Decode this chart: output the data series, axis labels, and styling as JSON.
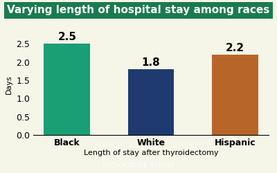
{
  "title": "Varying length of hospital stay among races",
  "categories": [
    "Black",
    "White",
    "Hispanic"
  ],
  "values": [
    2.5,
    1.8,
    2.2
  ],
  "bar_colors": [
    "#1a9e74",
    "#1e3a6e",
    "#b8652a"
  ],
  "ylabel": "Days",
  "xlabel": "Length of stay after thyroidectomy",
  "ylim": [
    0,
    2.75
  ],
  "yticks": [
    0,
    0.5,
    1.0,
    1.5,
    2.0,
    2.5
  ],
  "background_color": "#f5f5e8",
  "title_bg_color": "#1a7a50",
  "title_text_color": "#ffffff",
  "footer_bg_color": "#1a7a50",
  "footer_text": "Endocrine Today",
  "bar_label_fontsize": 11,
  "xlabel_fontsize": 8,
  "ylabel_fontsize": 8,
  "tick_label_fontsize": 9,
  "title_fontsize": 11
}
